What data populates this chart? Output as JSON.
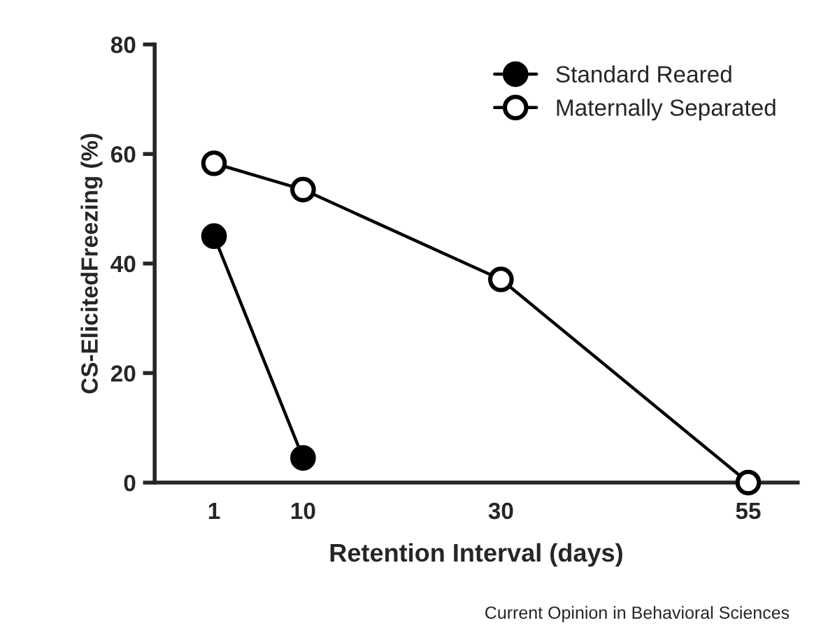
{
  "chart_data": {
    "type": "line",
    "xlabel": "Retention Interval (days)",
    "ylabel": "CS-ElicitedFreezing (%)",
    "annotations": [
      "Current Opinion in Behavioral Sciences"
    ],
    "xlim": [
      -5,
      60
    ],
    "xticks": [
      1,
      10,
      30,
      55
    ],
    "ylim": [
      0,
      80
    ],
    "yticks": [
      0,
      20,
      40,
      60,
      80
    ],
    "grid": false,
    "legend": "top right",
    "marker": "circle",
    "line_style": "solid",
    "series": [
      {
        "name": "Standard Reared",
        "color": "#000000",
        "x": [
          1,
          10
        ],
        "values": [
          45,
          4.5
        ]
      },
      {
        "name": "Maternally Separated",
        "color": "#000000",
        "x": [
          1,
          10,
          30,
          55
        ],
        "values": [
          58.3,
          53.5,
          37.1,
          0
        ]
      }
    ]
  }
}
